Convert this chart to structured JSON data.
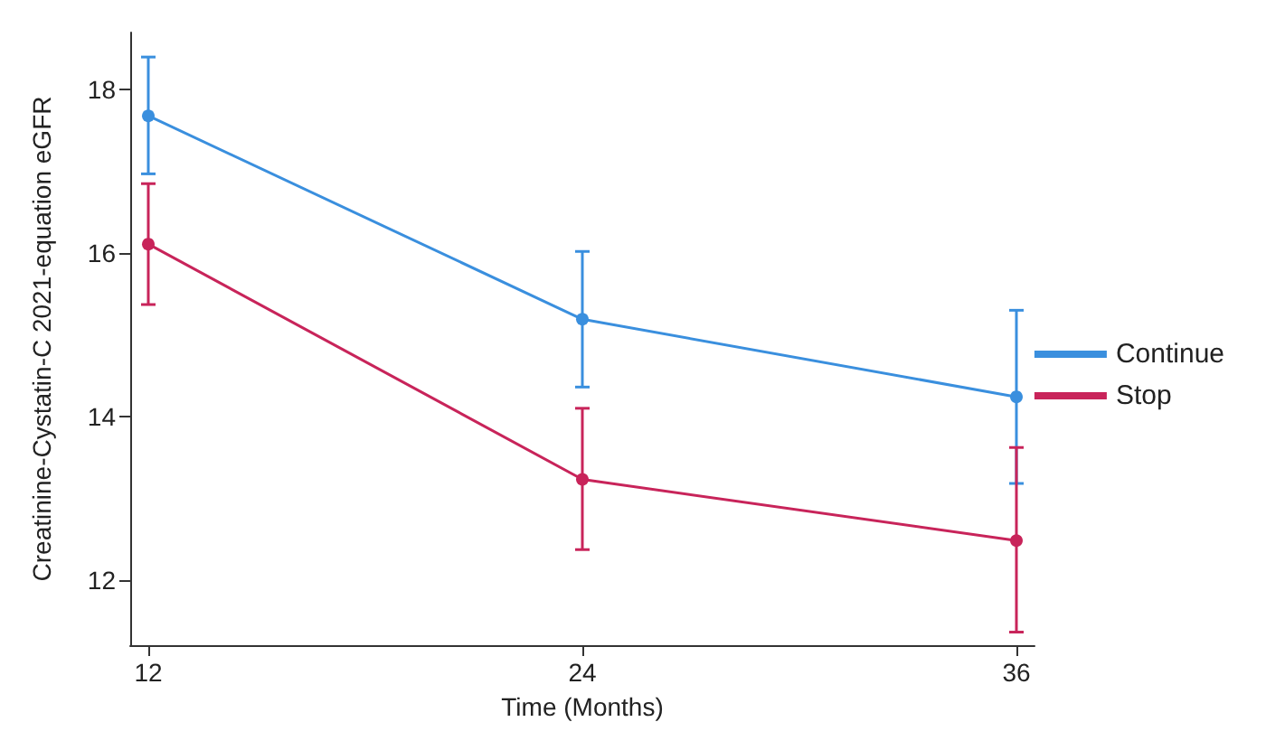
{
  "chart_data": {
    "type": "line",
    "xlabel": "Time (Months)",
    "ylabel": "Creatinine-Cystatin-C 2021-equation eGFR",
    "x": [
      12,
      24,
      36
    ],
    "series": [
      {
        "name": "Continue",
        "color": "#3a8fde",
        "values": [
          17.68,
          15.19,
          14.24
        ],
        "errors": [
          [
            16.97,
            18.4
          ],
          [
            14.36,
            16.02
          ],
          [
            13.18,
            15.3
          ]
        ]
      },
      {
        "name": "Stop",
        "color": "#c8245a",
        "values": [
          16.11,
          13.23,
          12.48
        ],
        "errors": [
          [
            15.37,
            16.85
          ],
          [
            12.37,
            14.1
          ],
          [
            11.36,
            13.62
          ]
        ]
      }
    ],
    "xlim": [
      11.5,
      36.5
    ],
    "xticks": [
      12,
      24,
      36
    ],
    "ylim": [
      11.2,
      18.7
    ],
    "yticks": [
      12,
      14,
      16,
      18
    ],
    "grid": false,
    "legend": "right",
    "marker": "circle",
    "line_style": "solid"
  }
}
